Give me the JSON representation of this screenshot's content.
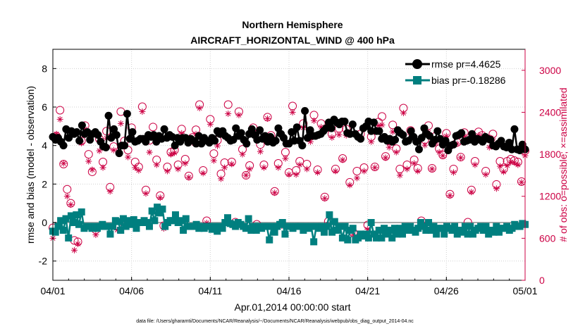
{
  "chart_data": {
    "type": "line",
    "title": "Northern Hemisphere",
    "subtitle": "AIRCRAFT_HORIZONTAL_WIND @ 400 hPa",
    "xlabel": "Apr.01,2014 00:00:00 start",
    "ylabel": "rmse and bias (model - observation)",
    "ylabel_right": "# of obs: o=possible; ×=assimilated",
    "footnote": "data file: /Users/gharamti/Documents/NCAR/Reanalysis/~/Documents/NCAR/Reanalysis/webpub/obs_diag_output_2014-04.nc",
    "x_ticks": [
      "04/01",
      "04/06",
      "04/11",
      "04/16",
      "04/21",
      "04/26",
      "05/01"
    ],
    "y_ticks": [
      "-2",
      "0",
      "2",
      "4",
      "6",
      "8"
    ],
    "y_right_ticks": [
      "0",
      "600",
      "1200",
      "1800",
      "2400",
      "3000"
    ],
    "xlim": [
      0,
      30
    ],
    "ylim": [
      -3,
      9
    ],
    "ylim_right": [
      0,
      3300
    ],
    "grid": true,
    "legend_position": "top-right",
    "colors": {
      "rmse": "#000000",
      "bias": "#007f7f",
      "obs": "#cc0044",
      "zero": "#aaaaaa"
    },
    "series": [
      {
        "name": "rmse pr=4.4625",
        "key": "rmse",
        "values": [
          4.45,
          4.3,
          4.4,
          4.2,
          4.0,
          4.85,
          4.4,
          4.75,
          4.6,
          4.7,
          4.25,
          5.05,
          4.6,
          4.7,
          4.3,
          4.6,
          4.7,
          4.55,
          4.2,
          3.95,
          3.9,
          5.55,
          4.4,
          4.85,
          4.55,
          3.6,
          4.0,
          4.0,
          5.65,
          4.35,
          4.7,
          4.2,
          4.25,
          4.35,
          4.35,
          4.2,
          4.55,
          4.45,
          4.55,
          4.2,
          4.5,
          4.35,
          4.85,
          4.4,
          4.55,
          4.45,
          4.0,
          4.4,
          4.2,
          4.4,
          4.4,
          4.15,
          4.35,
          4.25,
          4.1,
          4.5,
          4.1,
          4.4,
          4.25,
          4.15,
          4.4,
          4.25,
          4.75,
          4.6,
          4.75,
          4.5,
          4.4,
          4.25,
          4.3,
          4.9,
          4.5,
          4.65,
          4.3,
          4.1,
          4.6,
          4.85,
          4.55,
          4.3,
          4.8,
          4.35,
          4.5,
          4.2,
          4.45,
          4.15,
          4.25,
          4.9,
          4.6,
          4.4,
          4.1,
          4.1,
          4.7,
          4.25,
          4.95,
          4.25,
          4.0,
          5.8,
          4.4,
          4.8,
          4.5,
          4.5,
          4.55,
          4.6,
          4.75,
          4.9,
          5.2,
          4.9,
          5.35,
          5.2,
          5.1,
          5.25,
          5.25,
          4.65,
          4.6,
          5.1,
          4.6,
          4.45,
          4.35,
          4.9,
          5.0,
          5.25,
          4.75,
          5.2,
          4.75,
          4.75,
          4.35,
          4.45,
          4.25,
          4.35,
          4.2,
          4.3,
          4.8,
          4.65,
          4.55,
          4.2,
          4.25,
          4.75,
          4.45,
          4.2,
          3.8,
          4.4,
          4.9,
          4.6,
          4.5,
          4.1,
          4.3,
          4.75,
          4.35,
          4.05,
          4.25,
          3.75,
          4.0,
          4.05,
          4.5,
          4.55,
          4.65,
          4.2,
          4.25,
          4.3,
          4.6,
          4.2,
          4.35,
          4.3,
          4.2,
          4.45,
          4.35,
          4.3,
          4.0,
          3.95,
          4.1,
          4.25,
          3.95,
          3.9,
          4.15,
          3.8,
          4.85,
          3.8,
          3.75,
          4.05,
          3.8
        ]
      },
      {
        "name": "bias pr=-0.18286",
        "key": "bias",
        "values": [
          -0.45,
          -0.5,
          -0.2,
          0.1,
          -0.4,
          0.2,
          -0.8,
          0.35,
          0.0,
          0.4,
          -0.1,
          0.55,
          -0.3,
          -0.2,
          -0.2,
          -0.3,
          -0.2,
          -0.3,
          -0.2,
          -0.1,
          -0.2,
          -0.2,
          -0.6,
          -0.2,
          0.1,
          0.05,
          -0.4,
          0.2,
          -0.2,
          0.1,
          -0.1,
          0.15,
          -0.3,
          0.0,
          0.0,
          0.1,
          0.0,
          -0.2,
          0.6,
          0.1,
          0.8,
          0.5,
          0.7,
          -0.2,
          0.0,
          0.1,
          0.1,
          0.4,
          0.0,
          0.1,
          -0.4,
          0.2,
          -0.2,
          -0.2,
          -0.2,
          -0.1,
          -0.3,
          -0.2,
          -0.3,
          -0.2,
          -0.2,
          -0.35,
          -0.2,
          -0.45,
          -0.2,
          -0.3,
          0.0,
          0.25,
          -0.05,
          -0.1,
          -0.2,
          0.0,
          -0.1,
          -0.2,
          -0.3,
          0.2,
          -0.4,
          -0.2,
          -0.4,
          -0.2,
          -0.3,
          -0.2,
          -0.2,
          -0.9,
          -0.2,
          -0.5,
          -0.2,
          -0.1,
          0.0,
          -0.6,
          -0.2,
          -0.2,
          -0.3,
          -0.2,
          -0.2,
          -0.2,
          -0.4,
          -0.2,
          -0.3,
          -0.2,
          -1.0,
          -0.2,
          -0.3,
          -0.2,
          -0.5,
          -0.2,
          0.4,
          -0.5,
          0.05,
          -0.4,
          -0.2,
          -0.8,
          -0.2,
          -0.9,
          -0.4,
          -0.3,
          -0.9,
          -0.8,
          -0.6,
          -0.7,
          -0.6,
          -0.8,
          0.0,
          -0.6,
          -0.8,
          -0.4,
          -0.8,
          -0.3,
          -0.6,
          -0.4,
          -0.8,
          -0.3,
          -0.6,
          -0.3,
          -0.6,
          -0.2,
          -0.4,
          -0.2,
          -0.4,
          -0.5,
          -0.3,
          0.0,
          -0.2,
          -0.4,
          0.0,
          -0.4,
          -0.2,
          -0.6,
          -0.3,
          -0.3,
          -0.6,
          -0.2,
          -0.3,
          -0.4,
          -0.2,
          -0.6,
          -0.4,
          -0.5,
          -0.2,
          -0.6,
          -0.2,
          -0.6,
          -0.4,
          -0.3,
          -0.2,
          -0.4,
          -0.2,
          -0.6,
          -0.4,
          -0.5,
          -0.2,
          -0.5,
          -0.3,
          -0.3,
          -0.2,
          -0.4,
          -0.3,
          -0.1,
          -0.2,
          -0.2,
          -0.05,
          -0.1
        ]
      },
      {
        "name": "possible obs",
        "key": "possible",
        "values": [
          750,
          2060,
          2430,
          1660,
          1300,
          1100,
          570,
          550,
          1990,
          2210,
          1800,
          1550,
          720,
          2020,
          1690,
          2130,
          1330,
          1910,
          770,
          2410,
          1990,
          1860,
          2180,
          1690,
          1620,
          2480,
          1290,
          2000,
          2190,
          1720,
          1210,
          780,
          1620,
          1830,
          1860,
          1650,
          2160,
          1730,
          1490,
          2040,
          2150,
          2510,
          1570,
          850,
          2300,
          1810,
          2000,
          1520,
          1680,
          2510,
          1690,
          830,
          2410,
          1870,
          1500,
          1640,
          2180,
          800,
          1940,
          1650,
          2330,
          2070,
          1270,
          1670,
          810,
          1830,
          1540,
          2490,
          1570,
          1700,
          2240,
          1660,
          2060,
          2360,
          1580,
          2240,
          1190,
          840,
          2090,
          1590,
          2170,
          1740,
          2160,
          1400,
          680,
          1560,
          2090,
          1610,
          790,
          2050,
          1620,
          2260,
          2340,
          1770,
          1990,
          2220,
          1880,
          1590,
          2460,
          1650,
          2140,
          1720,
          1600,
          850,
          2010,
          2210,
          1600,
          2060,
          1880,
          1790,
          2100,
          1230,
          1590,
          1970,
          1760,
          2110,
          830,
          1290,
          1700,
          2120,
          2070,
          1560,
          2020,
          2090,
          1370,
          1700,
          1590,
          1700,
          1730,
          1710,
          1690,
          1410,
          1850
        ]
      },
      {
        "name": "assimilated obs",
        "key": "assimilated",
        "values": [
          600,
          2090,
          2300,
          1670,
          1200,
          1080,
          430,
          520,
          1960,
          2160,
          1700,
          1580,
          650,
          1850,
          1610,
          2030,
          1270,
          1860,
          720,
          2240,
          1920,
          1760,
          2120,
          1610,
          1570,
          2410,
          1240,
          1830,
          2070,
          1650,
          1180,
          740,
          1560,
          1800,
          1820,
          1590,
          2100,
          1670,
          1470,
          1970,
          2090,
          2460,
          1530,
          820,
          2230,
          1710,
          1920,
          1450,
          1610,
          2380,
          1660,
          770,
          2360,
          1800,
          1500,
          1590,
          2100,
          750,
          1840,
          1610,
          2310,
          1980,
          1250,
          1610,
          780,
          1740,
          1510,
          2400,
          1510,
          1650,
          2180,
          1590,
          1980,
          2280,
          1540,
          2190,
          1170,
          800,
          2040,
          1560,
          2080,
          1720,
          2070,
          1360,
          650,
          1460,
          2020,
          1560,
          730,
          1980,
          1610,
          2210,
          2220,
          1750,
          1900,
          2120,
          1830,
          1500,
          2390,
          1590,
          2080,
          1670,
          1560,
          790,
          1930,
          2110,
          1590,
          1960,
          1830,
          1780,
          2060,
          1210,
          1540,
          1950,
          1750,
          2060,
          770,
          1260,
          1650,
          2070,
          1980,
          1510,
          1900,
          2020,
          1310,
          1630,
          1550,
          1640,
          1690,
          1680,
          1650,
          1400,
          1780
        ]
      }
    ]
  }
}
